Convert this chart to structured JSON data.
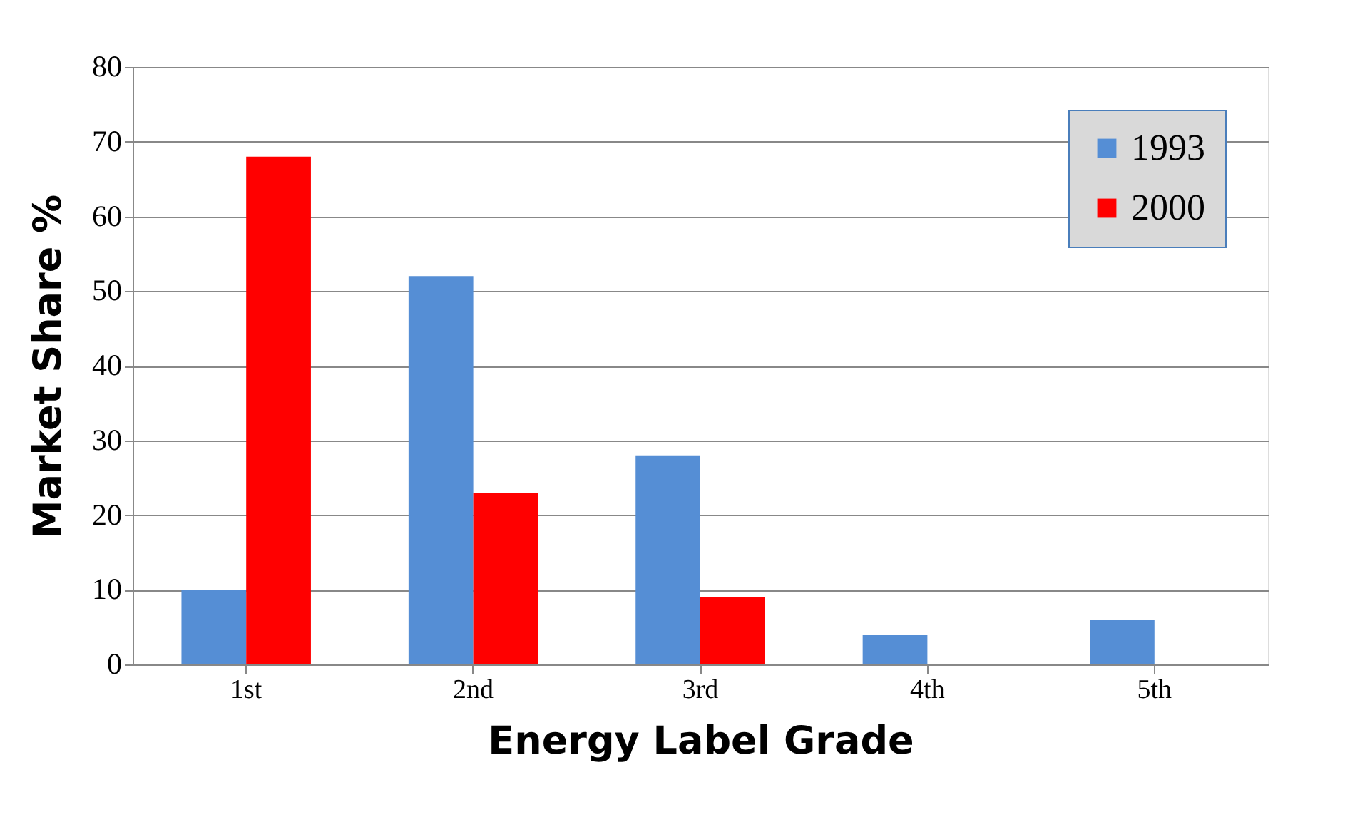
{
  "chart_data": {
    "type": "bar",
    "xlabel": "Energy Label Grade",
    "ylabel": "Market Share %",
    "categories": [
      "1st",
      "2nd",
      "3rd",
      "4th",
      "5th"
    ],
    "series": [
      {
        "name": "1993",
        "color": "#558ed5",
        "values": [
          10,
          52,
          28,
          4,
          6
        ]
      },
      {
        "name": "2000",
        "color": "#ff0000",
        "values": [
          68,
          23,
          9,
          0,
          0
        ]
      }
    ],
    "ylim": [
      0,
      80
    ],
    "yticks": [
      0,
      10,
      20,
      30,
      40,
      50,
      60,
      70,
      80
    ],
    "grid": "y",
    "legend": "top right"
  }
}
